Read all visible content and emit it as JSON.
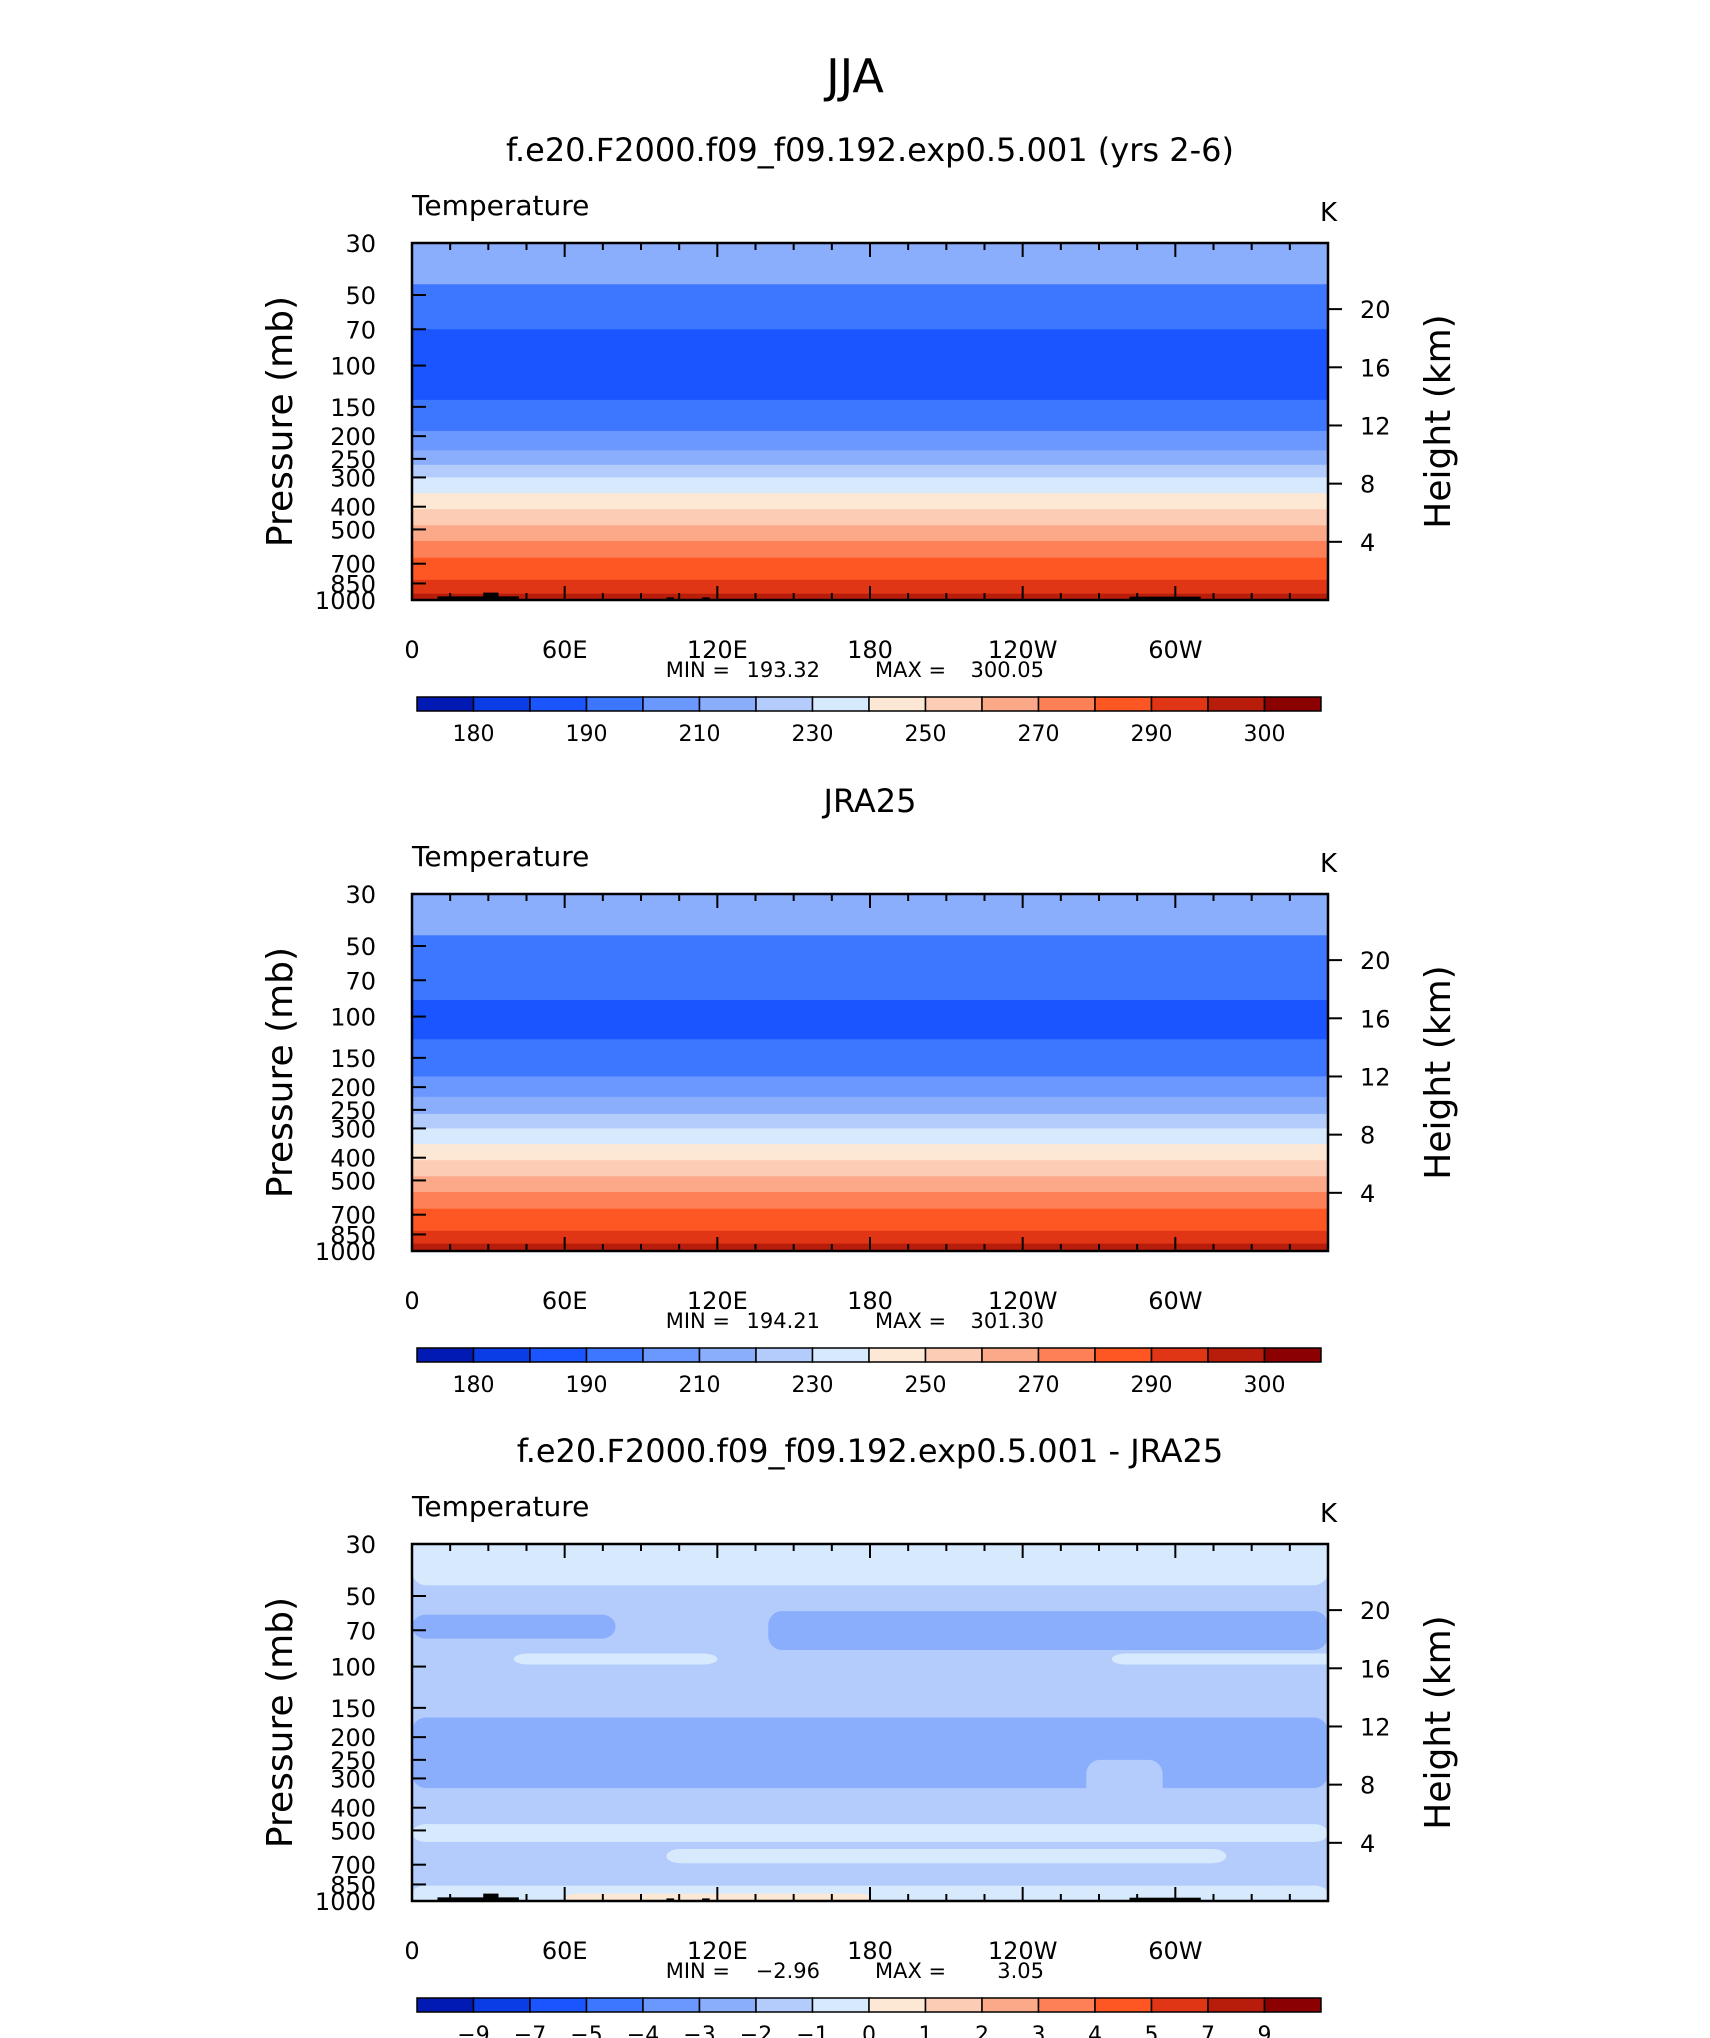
{
  "figure": {
    "title": "JJA"
  },
  "colors": {
    "temperature_scale": [
      "#00008b",
      "#001ab3",
      "#0a3de6",
      "#1a55ff",
      "#3e77ff",
      "#6b98ff",
      "#8aaefc",
      "#b4ccfc",
      "#d7e9fd",
      "#fde8d5",
      "#fdccb4",
      "#fca98a",
      "#fd8056",
      "#fe5724",
      "#e13616",
      "#b81d0b",
      "#8b0000"
    ],
    "diff_scale": [
      "#00008b",
      "#001ab3",
      "#0a3de6",
      "#1a55ff",
      "#3e77ff",
      "#6b98ff",
      "#8aaefc",
      "#b4ccfc",
      "#d7e9fd",
      "#fde8d5",
      "#fdccb4",
      "#fca98a",
      "#fd8056",
      "#fe5724",
      "#e13616",
      "#b81d0b",
      "#8b0000"
    ],
    "topography": "#000000"
  },
  "chart_data": [
    {
      "type": "heatmap",
      "title": "f.e20.F2000.f09_f09.192.exp0.5.001 (yrs 2-6)",
      "variable": "Temperature",
      "units": "K",
      "ylabel": "Pressure (mb)",
      "ylabel_right": "Height (km)",
      "x_tick_labels": [
        "0",
        "60E",
        "120E",
        "180",
        "120W",
        "60W"
      ],
      "x_ticks_deg": [
        0,
        60,
        120,
        180,
        240,
        300
      ],
      "xlim": [
        0,
        360
      ],
      "y_tick_labels": [
        "30",
        "50",
        "70",
        "100",
        "150",
        "200",
        "250",
        "300",
        "400",
        "500",
        "700",
        "850",
        "1000"
      ],
      "y_ticks_mb": [
        30,
        50,
        70,
        100,
        150,
        200,
        250,
        300,
        400,
        500,
        700,
        850,
        1000
      ],
      "ylim_mb": [
        1000,
        30
      ],
      "height_tick_labels": [
        "4",
        "8",
        "12",
        "16",
        "20"
      ],
      "height_ticks_km": [
        4,
        8,
        12,
        16,
        20
      ],
      "stats_min_label": "MIN  =",
      "stats_min_value": "193.32",
      "stats_max_label": "MAX  =",
      "stats_max_value": "300.05",
      "contour_levels": [
        175,
        180,
        185,
        190,
        200,
        210,
        220,
        230,
        240,
        250,
        260,
        270,
        280,
        290,
        295,
        300
      ],
      "colorbar_labels": [
        "180",
        "190",
        "210",
        "230",
        "250",
        "270",
        "290",
        "300"
      ],
      "level_bands_mb": [
        {
          "bottom": 30,
          "top": 30,
          "bin": 6
        },
        {
          "bottom": 45,
          "top": 30,
          "bin": 6
        },
        {
          "bottom": 70,
          "top": 45,
          "bin": 4
        },
        {
          "bottom": 140,
          "top": 70,
          "bin": 3
        },
        {
          "bottom": 190,
          "top": 140,
          "bin": 4
        },
        {
          "bottom": 230,
          "top": 190,
          "bin": 5
        },
        {
          "bottom": 265,
          "top": 230,
          "bin": 6
        },
        {
          "bottom": 300,
          "top": 265,
          "bin": 7
        },
        {
          "bottom": 350,
          "top": 300,
          "bin": 8
        },
        {
          "bottom": 410,
          "top": 350,
          "bin": 9
        },
        {
          "bottom": 480,
          "top": 410,
          "bin": 10
        },
        {
          "bottom": 560,
          "top": 480,
          "bin": 11
        },
        {
          "bottom": 660,
          "top": 560,
          "bin": 12
        },
        {
          "bottom": 820,
          "top": 660,
          "bin": 13
        },
        {
          "bottom": 940,
          "top": 820,
          "bin": 14
        },
        {
          "bottom": 1000,
          "top": 940,
          "bin": 15
        }
      ]
    },
    {
      "type": "heatmap",
      "title": "JRA25",
      "variable": "Temperature",
      "units": "K",
      "ylabel": "Pressure (mb)",
      "ylabel_right": "Height (km)",
      "x_tick_labels": [
        "0",
        "60E",
        "120E",
        "180",
        "120W",
        "60W"
      ],
      "x_ticks_deg": [
        0,
        60,
        120,
        180,
        240,
        300
      ],
      "xlim": [
        0,
        360
      ],
      "y_tick_labels": [
        "30",
        "50",
        "70",
        "100",
        "150",
        "200",
        "250",
        "300",
        "400",
        "500",
        "700",
        "850",
        "1000"
      ],
      "y_ticks_mb": [
        30,
        50,
        70,
        100,
        150,
        200,
        250,
        300,
        400,
        500,
        700,
        850,
        1000
      ],
      "ylim_mb": [
        1000,
        30
      ],
      "height_tick_labels": [
        "4",
        "8",
        "12",
        "16",
        "20"
      ],
      "height_ticks_km": [
        4,
        8,
        12,
        16,
        20
      ],
      "stats_min_label": "MIN  =",
      "stats_min_value": "194.21",
      "stats_max_label": "MAX  =",
      "stats_max_value": "301.30",
      "contour_levels": [
        175,
        180,
        185,
        190,
        200,
        210,
        220,
        230,
        240,
        250,
        260,
        270,
        280,
        290,
        295,
        300
      ],
      "colorbar_labels": [
        "180",
        "190",
        "210",
        "230",
        "250",
        "270",
        "290",
        "300"
      ],
      "level_bands_mb": [
        {
          "bottom": 45,
          "top": 30,
          "bin": 6
        },
        {
          "bottom": 85,
          "top": 45,
          "bin": 4
        },
        {
          "bottom": 125,
          "top": 85,
          "bin": 3
        },
        {
          "bottom": 180,
          "top": 125,
          "bin": 4
        },
        {
          "bottom": 220,
          "top": 180,
          "bin": 5
        },
        {
          "bottom": 260,
          "top": 220,
          "bin": 6
        },
        {
          "bottom": 300,
          "top": 260,
          "bin": 7
        },
        {
          "bottom": 350,
          "top": 300,
          "bin": 8
        },
        {
          "bottom": 410,
          "top": 350,
          "bin": 9
        },
        {
          "bottom": 480,
          "top": 410,
          "bin": 10
        },
        {
          "bottom": 560,
          "top": 480,
          "bin": 11
        },
        {
          "bottom": 660,
          "top": 560,
          "bin": 12
        },
        {
          "bottom": 820,
          "top": 660,
          "bin": 13
        },
        {
          "bottom": 930,
          "top": 820,
          "bin": 14
        },
        {
          "bottom": 1000,
          "top": 930,
          "bin": 15
        }
      ]
    },
    {
      "type": "heatmap",
      "title": "f.e20.F2000.f09_f09.192.exp0.5.001 - JRA25",
      "variable": "Temperature",
      "units": "K",
      "ylabel": "Pressure (mb)",
      "ylabel_right": "Height (km)",
      "x_tick_labels": [
        "0",
        "60E",
        "120E",
        "180",
        "120W",
        "60W"
      ],
      "x_ticks_deg": [
        0,
        60,
        120,
        180,
        240,
        300
      ],
      "xlim": [
        0,
        360
      ],
      "y_tick_labels": [
        "30",
        "50",
        "70",
        "100",
        "150",
        "200",
        "250",
        "300",
        "400",
        "500",
        "700",
        "850",
        "1000"
      ],
      "y_ticks_mb": [
        30,
        50,
        70,
        100,
        150,
        200,
        250,
        300,
        400,
        500,
        700,
        850,
        1000
      ],
      "ylim_mb": [
        1000,
        30
      ],
      "height_tick_labels": [
        "4",
        "8",
        "12",
        "16",
        "20"
      ],
      "height_ticks_km": [
        4,
        8,
        12,
        16,
        20
      ],
      "stats_min_label": "MIN  =",
      "stats_min_value": "−2.96",
      "stats_max_label": "MAX  =",
      "stats_max_value": "3.05",
      "contour_levels": [
        -9,
        -7,
        -5,
        -4,
        -3,
        -2,
        -1,
        0,
        1,
        2,
        3,
        4,
        5,
        7,
        9
      ],
      "colorbar_labels": [
        "−9",
        "−7",
        "−5",
        "−4",
        "−3",
        "−2",
        "−1",
        "0",
        "1",
        "2",
        "3",
        "4",
        "5",
        "7",
        "9"
      ],
      "level_bands_mb": [
        {
          "bottom": 48,
          "top": 30,
          "bin": 8
        },
        {
          "bottom": 72,
          "top": 48,
          "bin": 7
        },
        {
          "bottom": 100,
          "top": 72,
          "bin": 6
        },
        {
          "bottom": 155,
          "top": 100,
          "bin": 7
        },
        {
          "bottom": 330,
          "top": 155,
          "bin": 6
        },
        {
          "bottom": 460,
          "top": 330,
          "bin": 7
        },
        {
          "bottom": 560,
          "top": 460,
          "bin": 8
        },
        {
          "bottom": 840,
          "top": 560,
          "bin": 7
        },
        {
          "bottom": 1000,
          "top": 840,
          "bin": 8
        }
      ],
      "regions": [
        {
          "lon": [
            0,
            360
          ],
          "p": [
            1000,
            30
          ],
          "bin": 7
        },
        {
          "lon": [
            0,
            360
          ],
          "p": [
            45,
            30
          ],
          "bin": 8
        },
        {
          "lon": [
            0,
            80
          ],
          "p": [
            76,
            60
          ],
          "bin": 6
        },
        {
          "lon": [
            140,
            360
          ],
          "p": [
            85,
            58
          ],
          "bin": 6
        },
        {
          "lon": [
            40,
            120
          ],
          "p": [
            98,
            88
          ],
          "bin": 8
        },
        {
          "lon": [
            275,
            420
          ],
          "p": [
            98,
            88
          ],
          "bin": 8
        },
        {
          "lon": [
            0,
            360
          ],
          "p": [
            330,
            165
          ],
          "bin": 6
        },
        {
          "lon": [
            265,
            295
          ],
          "p": [
            420,
            250
          ],
          "bin": 7
        },
        {
          "lon": [
            0,
            360
          ],
          "p": [
            560,
            470
          ],
          "bin": 8
        },
        {
          "lon": [
            100,
            320
          ],
          "p": [
            690,
            600
          ],
          "bin": 8
        },
        {
          "lon": [
            0,
            360
          ],
          "p": [
            1000,
            860
          ],
          "bin": 8
        },
        {
          "lon": [
            60,
            180
          ],
          "p": [
            1000,
            930
          ],
          "bin": 9
        }
      ]
    }
  ],
  "topography_blocks": [
    {
      "lon": [
        10,
        42
      ],
      "p_top": 965
    },
    {
      "lon": [
        28,
        34
      ],
      "p_top": 930
    },
    {
      "lon": [
        100,
        103
      ],
      "p_top": 975
    },
    {
      "lon": [
        114,
        117
      ],
      "p_top": 975
    },
    {
      "lon": [
        282,
        310
      ],
      "p_top": 968
    }
  ]
}
